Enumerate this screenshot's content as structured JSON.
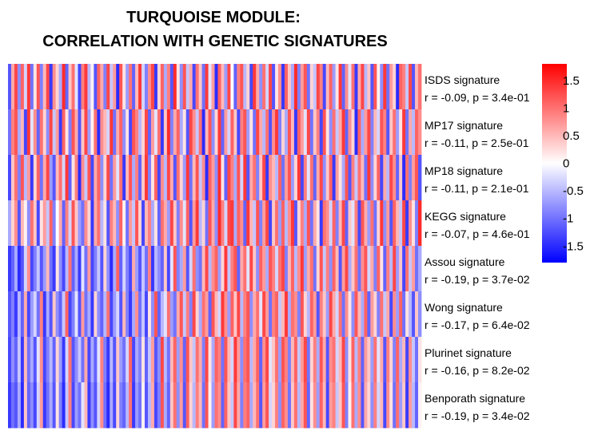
{
  "chart_data": {
    "type": "heatmap",
    "title_lines": [
      "TURQUOISE MODULE:",
      "CORRELATION WITH GENETIC SIGNATURES"
    ],
    "n_columns": 130,
    "colorscale": {
      "min": -1.8,
      "max": 1.8,
      "colors": [
        "#0000ff",
        "#ffffff",
        "#ff0000"
      ]
    },
    "colorbar_ticks": [
      1.5,
      1,
      0.5,
      0,
      -0.5,
      -1,
      -1.5
    ],
    "colorbar_tick_labels": [
      "1.5",
      "1",
      "0.5",
      "0",
      "-0.5",
      "-1",
      "-1.5"
    ],
    "rows": [
      {
        "name": "ISDS signature",
        "stat": "r = -0.09, p = 3.4e-01",
        "values": [
          -1.2,
          0.6,
          1.3,
          -0.8,
          1.1,
          -0.3,
          1.4,
          -1.0,
          0.2,
          1.2,
          -0.9,
          0.5,
          1.3,
          -1.4,
          0.8,
          0.3,
          -0.6,
          1.5,
          -1.1,
          0.4,
          1.0,
          -0.2,
          -1.3,
          0.9,
          1.4,
          -0.5,
          0.1,
          -1.2,
          1.1,
          0.6,
          -0.9,
          1.3,
          -0.4,
          0.7,
          -1.5,
          1.2,
          0.2,
          -0.7,
          1.0,
          -1.1,
          0.5,
          1.4,
          -0.3,
          -0.9,
          0.8,
          1.3,
          -1.4,
          0.3,
          1.1,
          -0.6,
          0.9,
          -1.2,
          1.5,
          0.2,
          -0.8,
          1.2,
          -0.4,
          0.6,
          -1.3,
          1.0,
          0.4,
          -1.0,
          1.4,
          -0.2,
          0.7,
          -1.5,
          1.1,
          0.5,
          -0.7,
          1.3,
          0.0,
          -1.1,
          0.9,
          1.2,
          -0.5,
          0.3,
          -1.3,
          1.4,
          0.6,
          -0.8,
          1.0,
          -0.3,
          1.3,
          -1.2,
          0.2,
          0.8,
          -1.4,
          1.1,
          0.4,
          -0.6,
          1.5,
          -0.9,
          0.7,
          1.2,
          -1.0,
          0.3,
          -0.4,
          1.3,
          0.9,
          -1.3,
          0.5,
          1.1,
          -0.7,
          0.2,
          1.4,
          -1.1,
          0.8,
          -0.2,
          1.0,
          -1.4,
          0.6,
          1.3,
          -0.5,
          0.4,
          -1.2,
          1.2,
          0.1,
          -0.8,
          1.4,
          -1.0,
          0.7,
          0.3,
          -1.5,
          1.1,
          0.9,
          -0.4,
          1.3,
          -1.2,
          0.5,
          1.0
        ]
      },
      {
        "name": "MP17 signature",
        "stat": "r = -0.11, p = 2.5e-01",
        "values": [
          -1.0,
          0.9,
          1.2,
          -0.6,
          0.5,
          -1.3,
          1.4,
          -0.2,
          0.8,
          -1.1,
          1.0,
          0.3,
          -0.8,
          1.3,
          -0.4,
          0.7,
          -1.4,
          1.1,
          0.2,
          -0.9,
          1.2,
          0.6,
          -1.2,
          0.4,
          1.3,
          -0.7,
          0.1,
          1.0,
          -1.5,
          0.8,
          0.5,
          -0.3,
          1.4,
          -1.0,
          0.6,
          1.1,
          -0.8,
          0.2,
          -1.3,
          1.2,
          0.9,
          -0.5,
          0.3,
          1.3,
          -1.1,
          0.7,
          -0.2,
          1.0,
          -1.4,
          0.4,
          1.5,
          -0.9,
          0.6,
          1.1,
          -0.6,
          0.2,
          -1.2,
          1.3,
          0.8,
          -0.4,
          1.0,
          -1.5,
          0.5,
          1.2,
          -0.8,
          0.3,
          1.4,
          -1.1,
          0.7,
          -0.3,
          1.1,
          0.4,
          -1.3,
          0.9,
          1.2,
          -0.7,
          0.2,
          -1.0,
          1.3,
          0.6,
          -0.5,
          1.0,
          -1.2,
          0.8,
          1.4,
          -0.9,
          0.3,
          -0.6,
          1.2,
          0.5,
          -1.4,
          1.1,
          0.7,
          -0.2,
          1.3,
          -1.0,
          0.4,
          0.9,
          -1.3,
          1.2,
          0.2,
          -0.8,
          1.0,
          -0.4,
          0.6,
          1.4,
          -1.1,
          0.8,
          0.3,
          -1.5,
          1.1,
          -0.6,
          0.7,
          1.3,
          -0.9,
          0.5,
          -0.3,
          1.2,
          0.9,
          -1.2,
          0.4,
          1.0,
          -0.7,
          0.2,
          1.4,
          -1.0,
          0.6,
          -0.5,
          1.1,
          0.8
        ]
      },
      {
        "name": "MP18 signature",
        "stat": "r = -0.11, p = 2.1e-01",
        "values": [
          -1.3,
          0.4,
          1.0,
          -0.9,
          1.2,
          -0.5,
          0.7,
          -1.4,
          0.3,
          1.1,
          -1.0,
          0.6,
          1.3,
          -0.7,
          -1.2,
          0.5,
          1.0,
          -0.3,
          1.4,
          -1.1,
          0.2,
          0.9,
          -1.5,
          0.8,
          -0.4,
          1.2,
          -1.3,
          0.6,
          1.1,
          -0.8,
          0.3,
          1.3,
          -1.0,
          0.7,
          -0.2,
          1.0,
          -1.4,
          0.5,
          1.2,
          -0.6,
          0.9,
          -1.1,
          0.4,
          1.4,
          -0.9,
          0.2,
          1.1,
          -1.3,
          0.8,
          -0.5,
          1.3,
          0.6,
          -1.2,
          1.0,
          0.3,
          -0.7,
          1.4,
          -1.0,
          0.5,
          1.2,
          -0.4,
          0.8,
          -1.5,
          1.1,
          0.7,
          -0.8,
          1.5,
          0.2,
          -1.1,
          1.3,
          0.9,
          -0.6,
          1.2,
          -0.3,
          1.4,
          -1.2,
          0.6,
          1.0,
          -0.9,
          0.4,
          1.3,
          -1.4,
          0.8,
          0.5,
          -0.5,
          1.1,
          -1.0,
          0.7,
          1.2,
          -0.7,
          0.3,
          1.4,
          -1.3,
          0.9,
          -0.2,
          1.0,
          -1.1,
          0.6,
          1.3,
          -0.8,
          0.4,
          1.1,
          -1.4,
          0.7,
          0.2,
          -0.6,
          1.2,
          -1.2,
          0.9,
          -0.4,
          1.0,
          0.5,
          -1.0,
          1.4,
          -0.8,
          0.3,
          1.1,
          -1.3,
          0.6,
          -0.5,
          1.3,
          0.8,
          -1.1,
          0.4,
          -1.5,
          1.0,
          -0.9,
          0.7,
          1.2,
          -1.2
        ]
      },
      {
        "name": "KEGG signature",
        "stat": "r = -0.07, p = 4.6e-01",
        "values": [
          -0.6,
          0.3,
          0.8,
          -1.2,
          0.5,
          0.1,
          -0.8,
          1.0,
          0.4,
          -1.3,
          0.2,
          0.7,
          -0.4,
          1.1,
          -0.9,
          0.0,
          0.6,
          -1.1,
          0.9,
          -0.3,
          1.2,
          0.4,
          -0.7,
          -1.0,
          0.8,
          0.3,
          -1.4,
          0.6,
          1.0,
          -0.5,
          0.2,
          -1.2,
          0.9,
          0.5,
          -0.8,
          1.1,
          0.1,
          -1.0,
          0.7,
          -0.4,
          1.2,
          0.3,
          -1.3,
          0.5,
          0.9,
          -0.6,
          0.2,
          -1.1,
          1.0,
          0.6,
          -0.7,
          1.3,
          0.4,
          -0.9,
          0.8,
          -0.2,
          1.1,
          -1.2,
          0.7,
          1.4,
          -0.5,
          0.3,
          -1.0,
          1.2,
          0.6,
          -0.8,
          1.5,
          0.9,
          -0.3,
          1.3,
          1.4,
          -0.6,
          1.1,
          0.8,
          -1.1,
          1.4,
          0.5,
          -0.4,
          1.2,
          -0.9,
          0.7,
          1.3,
          -1.3,
          0.4,
          1.0,
          -0.7,
          1.1,
          -0.5,
          0.8,
          1.4,
          -1.2,
          0.3,
          0.9,
          -0.6,
          1.2,
          -1.0,
          0.6,
          0.2,
          -1.4,
          1.0,
          0.8,
          -0.3,
          1.1,
          -0.9,
          0.5,
          1.3,
          -1.1,
          0.4,
          -0.2,
          0.9,
          -1.3,
          1.2,
          0.6,
          -0.7,
          1.0,
          -1.0,
          0.3,
          1.4,
          -0.8,
          0.7,
          -1.2,
          1.1,
          0.5,
          -0.4,
          1.3,
          -1.4,
          0.8,
          0.2,
          -0.9,
          1.5
        ]
      },
      {
        "name": "Assou signature",
        "stat": "r = -0.19, p = 3.7e-02",
        "values": [
          -1.4,
          -1.1,
          -0.6,
          -1.5,
          -1.2,
          -0.3,
          0.8,
          -1.3,
          -0.9,
          -0.4,
          -1.2,
          -0.7,
          0.5,
          -1.0,
          -1.4,
          0.2,
          -0.8,
          -1.3,
          -0.5,
          1.0,
          -1.1,
          -0.6,
          -1.4,
          -0.2,
          -1.0,
          0.7,
          -1.3,
          -0.9,
          -0.4,
          -1.2,
          0.3,
          -0.8,
          -1.5,
          -0.6,
          1.1,
          -1.1,
          -0.3,
          -0.9,
          -1.3,
          0.6,
          -0.7,
          -1.2,
          -0.4,
          -1.0,
          0.9,
          -1.4,
          -0.5,
          -0.8,
          -1.1,
          0.4,
          -1.3,
          -0.2,
          1.2,
          -0.9,
          -0.6,
          0.7,
          -1.2,
          -0.3,
          1.0,
          -0.8,
          -1.0,
          0.5,
          1.3,
          -0.5,
          0.8,
          1.1,
          -0.7,
          0.3,
          1.4,
          -0.4,
          0.9,
          1.2,
          -1.1,
          0.6,
          1.0,
          -0.2,
          1.3,
          0.4,
          -0.8,
          1.1,
          0.7,
          -0.6,
          1.2,
          0.9,
          -0.3,
          1.0,
          1.3,
          -0.9,
          0.5,
          1.1,
          -0.5,
          0.8,
          1.4,
          -0.7,
          0.6,
          1.0,
          -1.0,
          0.3,
          1.2,
          -0.4,
          0.9,
          -0.8,
          1.1,
          0.5,
          -1.2,
          0.7,
          1.3,
          -0.6,
          0.4,
          1.0,
          -1.0,
          0.8,
          1.2,
          -0.3,
          0.6,
          -0.9,
          1.1,
          0.2,
          -1.1,
          0.9,
          -0.5,
          1.3,
          -0.7,
          0.4,
          -1.3,
          1.0,
          -0.4,
          0.7,
          -1.0,
          -0.6
        ]
      },
      {
        "name": "Wong signature",
        "stat": "r = -0.17, p = 6.4e-02",
        "values": [
          -1.2,
          -0.9,
          -1.4,
          -0.5,
          -1.1,
          0.6,
          -1.3,
          -0.7,
          -0.3,
          -1.0,
          0.9,
          -1.4,
          -0.6,
          -1.2,
          0.4,
          -0.8,
          -1.1,
          -0.4,
          1.1,
          -1.3,
          -0.9,
          -0.2,
          -1.2,
          0.7,
          -1.0,
          -0.6,
          -1.4,
          0.3,
          -0.8,
          -1.1,
          -0.5,
          1.0,
          -1.3,
          -0.7,
          -0.3,
          -1.2,
          0.5,
          -0.9,
          -1.4,
          -0.6,
          0.8,
          -1.0,
          -0.4,
          -1.3,
          0.2,
          -0.8,
          1.2,
          -1.1,
          -0.5,
          -0.2,
          1.0,
          -0.7,
          -1.0,
          0.6,
          1.2,
          -0.4,
          0.9,
          -0.9,
          1.3,
          0.3,
          -0.6,
          1.0,
          0.7,
          -1.1,
          1.2,
          0.5,
          -0.3,
          1.4,
          0.8,
          -0.7,
          1.1,
          0.4,
          1.3,
          -0.5,
          0.9,
          1.2,
          -0.8,
          0.6,
          1.0,
          -0.2,
          1.3,
          0.7,
          -1.0,
          0.9,
          1.1,
          -0.4,
          0.5,
          1.4,
          -0.6,
          1.0,
          0.8,
          -0.9,
          1.2,
          0.3,
          -0.5,
          1.1,
          0.7,
          -1.2,
          0.9,
          0.4,
          -0.7,
          1.3,
          0.6,
          -0.3,
          1.0,
          -1.0,
          0.8,
          0.2,
          -0.8,
          1.2,
          0.5,
          -0.6,
          1.1,
          -1.1,
          0.7,
          0.3,
          -0.9,
          1.0,
          -0.4,
          0.6,
          -1.3,
          0.8,
          -0.7,
          1.1,
          -1.0,
          0.2,
          -0.5,
          -1.2,
          0.4,
          -0.8
        ]
      },
      {
        "name": "Plurinet signature",
        "stat": "r = -0.16, p = 8.2e-02",
        "values": [
          -1.3,
          -0.8,
          -1.1,
          -0.4,
          -1.4,
          0.5,
          -1.0,
          -0.6,
          -1.2,
          -0.2,
          0.8,
          -1.3,
          -0.9,
          -0.5,
          -1.1,
          0.3,
          -0.7,
          -1.4,
          -0.3,
          1.0,
          -1.2,
          -0.8,
          -0.4,
          -1.0,
          0.6,
          -1.3,
          -0.6,
          -1.1,
          -0.2,
          0.9,
          -0.9,
          -1.4,
          -0.5,
          -1.2,
          0.4,
          -0.7,
          -1.0,
          -0.3,
          1.1,
          -1.3,
          -0.6,
          -0.9,
          0.2,
          -1.1,
          -0.4,
          0.7,
          -1.2,
          -0.8,
          1.3,
          -0.5,
          -1.0,
          0.5,
          1.1,
          -0.7,
          0.8,
          -1.1,
          1.2,
          0.4,
          -0.4,
          1.0,
          0.6,
          -0.9,
          1.3,
          0.2,
          -0.6,
          1.1,
          0.9,
          -1.0,
          1.2,
          0.5,
          -0.3,
          1.4,
          0.7,
          -0.8,
          1.0,
          1.2,
          -0.5,
          0.6,
          1.1,
          -1.1,
          0.8,
          1.3,
          -0.2,
          0.4,
          1.0,
          -0.7,
          1.2,
          0.9,
          -0.9,
          0.5,
          1.1,
          -0.4,
          0.7,
          1.3,
          -1.0,
          0.3,
          0.9,
          -0.6,
          1.2,
          0.6,
          -1.2,
          0.8,
          1.0,
          -0.3,
          0.5,
          1.3,
          -0.8,
          0.2,
          1.1,
          -0.5,
          0.9,
          -1.1,
          0.7,
          0.4,
          -0.7,
          1.0,
          -0.2,
          0.6,
          -1.2,
          0.9,
          0.3,
          -0.9,
          1.1,
          -0.6,
          0.5,
          -1.3,
          0.8,
          -0.4,
          -1.0,
          0.2
        ]
      },
      {
        "name": "Benporath signature",
        "stat": "r = -0.19, p = 3.4e-02",
        "values": [
          -1.4,
          -1.0,
          -1.2,
          -0.6,
          -1.5,
          0.4,
          -1.1,
          -0.8,
          -1.3,
          -0.3,
          0.7,
          -1.4,
          -1.0,
          -0.6,
          -1.2,
          0.2,
          -0.9,
          -1.5,
          -0.4,
          0.9,
          -1.3,
          -0.7,
          -1.0,
          -0.2,
          0.5,
          -1.4,
          -0.8,
          -1.2,
          -0.3,
          0.8,
          -1.0,
          -1.5,
          -0.6,
          -1.3,
          0.3,
          -0.9,
          -1.1,
          -0.5,
          1.0,
          -1.4,
          -0.7,
          -1.0,
          0.1,
          -1.2,
          -0.5,
          0.6,
          -1.3,
          -0.9,
          1.2,
          -0.6,
          -1.1,
          0.4,
          1.0,
          -0.8,
          0.7,
          -1.2,
          1.1,
          0.3,
          -0.5,
          0.9,
          0.5,
          -1.0,
          1.2,
          0.1,
          -0.7,
          1.0,
          0.8,
          -1.1,
          1.1,
          0.4,
          -0.4,
          1.3,
          0.6,
          -0.9,
          0.9,
          1.1,
          -0.6,
          0.5,
          1.0,
          -1.2,
          0.7,
          1.2,
          -0.3,
          0.3,
          0.9,
          -0.8,
          1.1,
          0.8,
          -1.0,
          0.4,
          1.0,
          -0.5,
          0.6,
          1.2,
          -1.1,
          0.2,
          0.8,
          -0.7,
          1.1,
          0.5,
          -1.3,
          0.7,
          0.9,
          -0.4,
          0.4,
          1.2,
          -0.9,
          0.1,
          1.0,
          -0.6,
          0.8,
          -1.2,
          0.6,
          0.3,
          -0.8,
          0.9,
          -0.3,
          0.5,
          -1.3,
          0.8,
          0.2,
          -1.0,
          1.0,
          -0.7,
          0.4,
          -1.4,
          0.7,
          -0.5,
          -1.1,
          0.1
        ]
      }
    ]
  }
}
